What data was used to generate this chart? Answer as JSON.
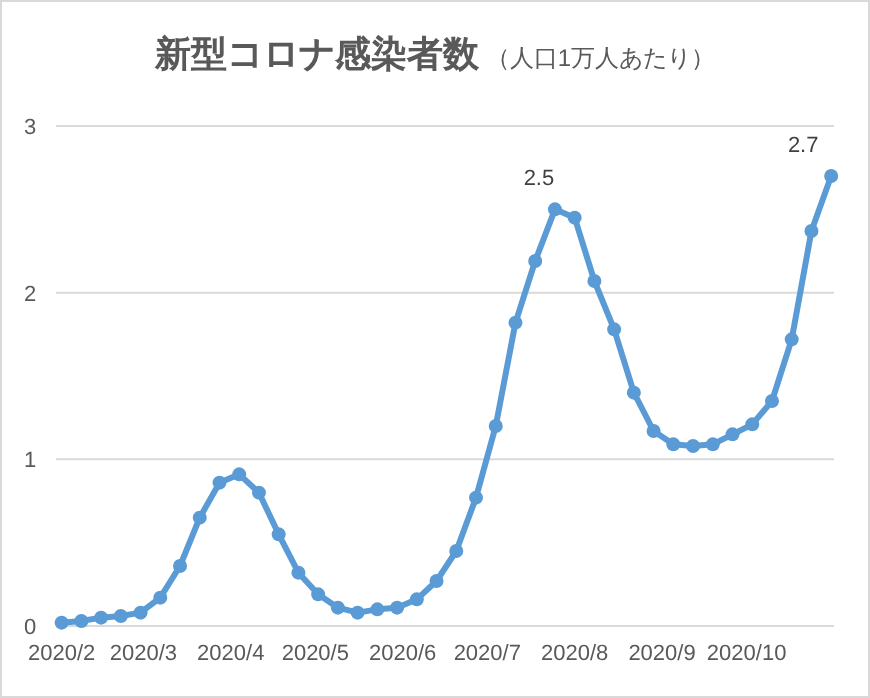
{
  "chart_data": {
    "type": "line",
    "title": "新型コロナ感染者数",
    "subtitle": "（人口1万人あたり）",
    "x": [
      "2020-02-01",
      "2020-02-08",
      "2020-02-15",
      "2020-02-22",
      "2020-02-29",
      "2020-03-07",
      "2020-03-14",
      "2020-03-21",
      "2020-03-28",
      "2020-04-04",
      "2020-04-11",
      "2020-04-18",
      "2020-04-25",
      "2020-05-02",
      "2020-05-09",
      "2020-05-16",
      "2020-05-23",
      "2020-05-30",
      "2020-06-06",
      "2020-06-13",
      "2020-06-20",
      "2020-06-27",
      "2020-07-04",
      "2020-07-11",
      "2020-07-18",
      "2020-07-25",
      "2020-08-01",
      "2020-08-08",
      "2020-08-15",
      "2020-08-22",
      "2020-08-29",
      "2020-09-05",
      "2020-09-12",
      "2020-09-19",
      "2020-09-26",
      "2020-10-03",
      "2020-10-10",
      "2020-10-17",
      "2020-10-24",
      "2020-10-31"
    ],
    "values": [
      0.02,
      0.03,
      0.05,
      0.06,
      0.08,
      0.17,
      0.36,
      0.65,
      0.86,
      0.91,
      0.8,
      0.55,
      0.32,
      0.19,
      0.11,
      0.08,
      0.1,
      0.11,
      0.16,
      0.27,
      0.45,
      0.77,
      1.2,
      1.82,
      2.19,
      2.5,
      2.45,
      2.07,
      1.78,
      1.4,
      1.17,
      1.09,
      1.08,
      1.09,
      1.15,
      1.21,
      1.35,
      1.72,
      2.37,
      2.7
    ],
    "value_labels": [
      null,
      null,
      null,
      null,
      null,
      null,
      null,
      null,
      null,
      null,
      null,
      null,
      null,
      null,
      null,
      null,
      null,
      null,
      null,
      null,
      null,
      null,
      null,
      null,
      null,
      "2.5",
      null,
      null,
      null,
      null,
      null,
      null,
      null,
      null,
      null,
      null,
      null,
      null,
      null,
      "2.7"
    ],
    "color": "#5b9bd5",
    "marker": "circle",
    "line_style": "solid",
    "grid": "y",
    "xlim": [
      "2020-01-30",
      "2020-11-01"
    ],
    "xticks": [
      {
        "value": "2020-02-01",
        "label": "2020/2"
      },
      {
        "value": "2020-03-01",
        "label": "2020/3"
      },
      {
        "value": "2020-04-01",
        "label": "2020/4"
      },
      {
        "value": "2020-05-01",
        "label": "2020/5"
      },
      {
        "value": "2020-06-01",
        "label": "2020/6"
      },
      {
        "value": "2020-07-01",
        "label": "2020/7"
      },
      {
        "value": "2020-08-01",
        "label": "2020/8"
      },
      {
        "value": "2020-09-01",
        "label": "2020/9"
      },
      {
        "value": "2020-10-01",
        "label": "2020/10"
      }
    ],
    "ylim": [
      0,
      3
    ],
    "yticks": [
      0,
      1,
      2,
      3
    ]
  }
}
